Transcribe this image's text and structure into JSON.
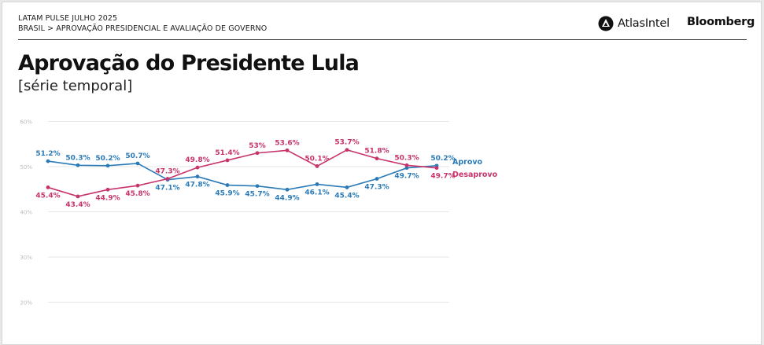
{
  "header": {
    "survey_line": "LATAM PULSE JULHO 2025",
    "breadcrumb": "BRASIL > APROVAÇÃO PRESIDENCIAL E AVALIAÇÃO DE GOVERNO",
    "brand_atlas": "AtlasIntel",
    "brand_bloomberg": "Bloomberg"
  },
  "page": {
    "title": "Aprovação do Presidente Lula",
    "subtitle": "[série temporal]"
  },
  "colors": {
    "aprovo": "#2a7ab8",
    "desaprovo": "#c8336b",
    "grid": "#e6e6e6",
    "tick": "#bdbdbd"
  },
  "chart_data": {
    "type": "line",
    "ylim": [
      20,
      60
    ],
    "yticks": [
      "60%",
      "50%",
      "40%",
      "30%",
      "20%"
    ],
    "ytick_values": [
      60,
      50,
      40,
      30,
      20
    ],
    "grid": true,
    "legend": "right, inline at line ends",
    "series": [
      {
        "name": "Aprovo",
        "color_key": "aprovo",
        "values": [
          51.2,
          50.3,
          50.2,
          50.7,
          47.1,
          47.8,
          45.9,
          45.7,
          44.9,
          46.1,
          45.4,
          47.3,
          49.7,
          50.2
        ],
        "labels": [
          "51.2%",
          "50.3%",
          "50.2%",
          "50.7%",
          "47.1%",
          "47.8%",
          "45.9%",
          "45.7%",
          "44.9%",
          "46.1%",
          "45.4%",
          "47.3%",
          "49.7%",
          "50.2%"
        ]
      },
      {
        "name": "Desaprovo",
        "color_key": "desaprovo",
        "values": [
          45.4,
          43.4,
          44.9,
          45.8,
          47.3,
          49.8,
          51.4,
          53,
          53.6,
          50.1,
          53.7,
          51.8,
          50.3,
          49.7
        ],
        "labels": [
          "45.4%",
          "43.4%",
          "44.9%",
          "45.8%",
          "47.3%",
          "49.8%",
          "51.4%",
          "53%",
          "53.6%",
          "50.1%",
          "53.7%",
          "51.8%",
          "50.3%",
          "49.7%"
        ]
      }
    ]
  }
}
